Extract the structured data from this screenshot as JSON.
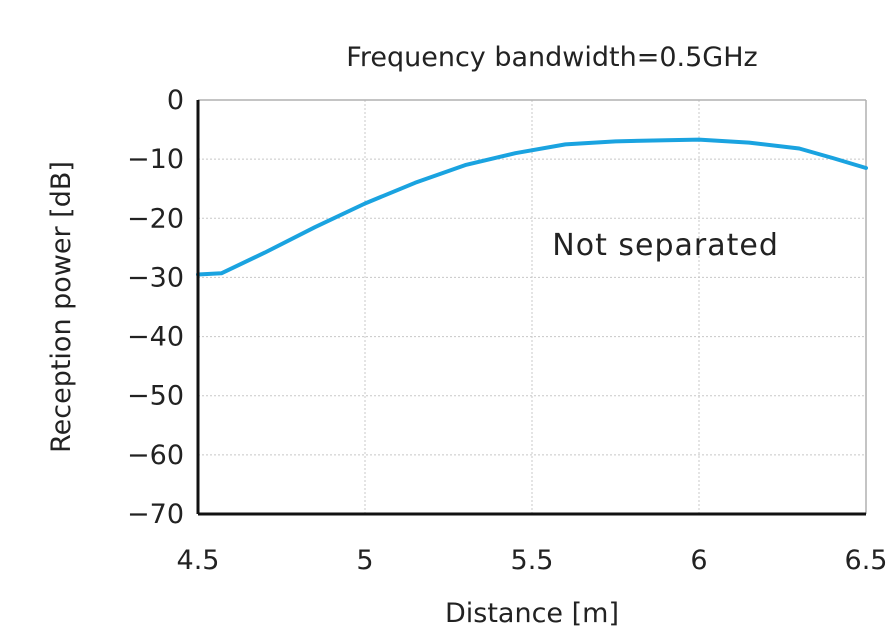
{
  "chart_data": {
    "type": "line",
    "title": "Frequency bandwidth=0.5GHz",
    "xlabel": "Distance [m]",
    "ylabel": "Reception power [dB]",
    "xlim": [
      4.5,
      6.5
    ],
    "ylim": [
      -70,
      0
    ],
    "xticks": [
      "4.5",
      "5",
      "5.5",
      "6",
      "6.5"
    ],
    "yticks": [
      "0",
      "−10",
      "−20",
      "−30",
      "−40",
      "−50",
      "−60",
      "−70"
    ],
    "grid": true,
    "series": [
      {
        "color": "#1aa3e0",
        "x": [
          4.5,
          4.57,
          4.7,
          4.85,
          5.0,
          5.15,
          5.3,
          5.45,
          5.6,
          5.75,
          5.9,
          6.0,
          6.15,
          6.3,
          6.4,
          6.5
        ],
        "y": [
          -29.5,
          -29.3,
          -25.8,
          -21.5,
          -17.5,
          -14.0,
          -11.0,
          -9.0,
          -7.5,
          -7.0,
          -6.8,
          -6.7,
          -7.2,
          -8.2,
          -9.8,
          -11.5
        ]
      }
    ],
    "annotations": [
      {
        "text": "Not separated",
        "x": 5.9,
        "y": -24.5
      }
    ]
  }
}
